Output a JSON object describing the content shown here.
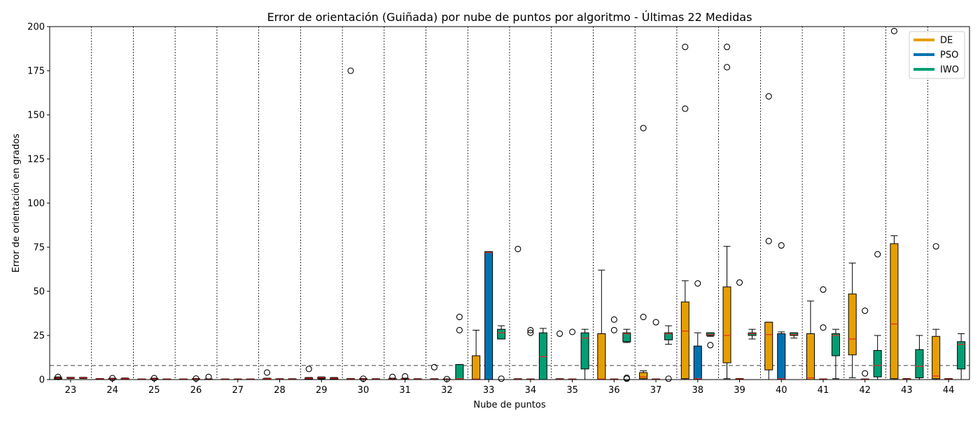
{
  "chart_data": {
    "type": "box",
    "title": "Error de orientación (Guiñada) por nube de puntos por algoritmo - Últimas 22 Medidas",
    "xlabel": "Nube de puntos",
    "ylabel": "Error de orientación en grados",
    "categories": [
      "23",
      "24",
      "25",
      "26",
      "27",
      "28",
      "29",
      "30",
      "31",
      "32",
      "33",
      "34",
      "35",
      "36",
      "37",
      "38",
      "39",
      "40",
      "41",
      "42",
      "43",
      "44"
    ],
    "ylim": [
      0,
      200
    ],
    "yticks": [
      0,
      25,
      50,
      75,
      100,
      125,
      150,
      175,
      200
    ],
    "threshold": 8,
    "legend_position": "top-right",
    "colors": {
      "DE": "#E69F00",
      "PSO": "#0072B2",
      "IWO": "#009E73",
      "median": "#e8281e",
      "threshold": "#7f7f7f"
    },
    "series": [
      {
        "name": "DE",
        "boxes": [
          {
            "q1": 0.5,
            "med": 0.9,
            "q3": 1.2,
            "lo": 0.2,
            "hi": 1.5,
            "out": [
              1.5
            ]
          },
          {
            "q1": 0.2,
            "med": 0.3,
            "q3": 0.5,
            "lo": 0.0,
            "hi": 0.6,
            "out": []
          },
          {
            "q1": 0.1,
            "med": 0.2,
            "q3": 0.3,
            "lo": 0.0,
            "hi": 0.4,
            "out": []
          },
          {
            "q1": 0.1,
            "med": 0.2,
            "q3": 0.3,
            "lo": 0.0,
            "hi": 0.4,
            "out": []
          },
          {
            "q1": 0.1,
            "med": 0.2,
            "q3": 0.3,
            "lo": 0.0,
            "hi": 0.4,
            "out": []
          },
          {
            "q1": 0.2,
            "med": 0.4,
            "q3": 0.6,
            "lo": 0.0,
            "hi": 0.8,
            "out": [
              4
            ]
          },
          {
            "q1": 0.4,
            "med": 0.7,
            "q3": 1.0,
            "lo": 0.2,
            "hi": 1.2,
            "out": [
              6
            ]
          },
          {
            "q1": 0.1,
            "med": 0.3,
            "q3": 0.5,
            "lo": 0.0,
            "hi": 0.6,
            "out": [
              175
            ]
          },
          {
            "q1": 0.2,
            "med": 0.4,
            "q3": 0.6,
            "lo": 0.0,
            "hi": 0.8,
            "out": [
              1.5
            ]
          },
          {
            "q1": 0.1,
            "med": 0.2,
            "q3": 0.4,
            "lo": 0.0,
            "hi": 0.5,
            "out": [
              7
            ]
          },
          {
            "q1": 0,
            "med": 0.3,
            "q3": 13.5,
            "lo": 0,
            "hi": 28,
            "out": []
          },
          {
            "q1": 0.1,
            "med": 0.2,
            "q3": 0.4,
            "lo": 0.0,
            "hi": 0.5,
            "out": [
              74
            ]
          },
          {
            "q1": 0.1,
            "med": 0.2,
            "q3": 0.4,
            "lo": 0.0,
            "hi": 0.5,
            "out": [
              26
            ]
          },
          {
            "q1": 0,
            "med": 0.3,
            "q3": 26,
            "lo": 0,
            "hi": 62,
            "out": []
          },
          {
            "q1": 0.5,
            "med": 1.5,
            "q3": 4,
            "lo": 0,
            "hi": 5,
            "out": [
              142.5,
              35.5
            ]
          },
          {
            "q1": 0.5,
            "med": 27.5,
            "q3": 44,
            "lo": 0,
            "hi": 56,
            "out": [
              188.5,
              153.5
            ]
          },
          {
            "q1": 9.5,
            "med": 25,
            "q3": 52.5,
            "lo": 0.5,
            "hi": 75.5,
            "out": [
              188.5,
              177
            ]
          },
          {
            "q1": 5.5,
            "med": 25.5,
            "q3": 32.5,
            "lo": 0,
            "hi": 32.5,
            "out": [
              160.5,
              78.5
            ]
          },
          {
            "q1": 0,
            "med": 1,
            "q3": 26,
            "lo": 0,
            "hi": 44.5,
            "out": []
          },
          {
            "q1": 14,
            "med": 23,
            "q3": 48.5,
            "lo": 1,
            "hi": 66,
            "out": []
          },
          {
            "q1": 0.5,
            "med": 31.5,
            "q3": 77,
            "lo": 0,
            "hi": 81.5,
            "out": [
              197.5
            ]
          },
          {
            "q1": 0.5,
            "med": 2,
            "q3": 24.5,
            "lo": 0,
            "hi": 28.5,
            "out": [
              75.5
            ]
          }
        ]
      },
      {
        "name": "PSO",
        "boxes": [
          {
            "q1": 0.8,
            "med": 1.0,
            "q3": 1.2,
            "lo": 0.6,
            "hi": 1.3,
            "out": []
          },
          {
            "q1": 0.2,
            "med": 0.4,
            "q3": 0.6,
            "lo": 0.0,
            "hi": 0.8,
            "out": [
              0.8
            ]
          },
          {
            "q1": 0.2,
            "med": 0.4,
            "q3": 0.6,
            "lo": 0.0,
            "hi": 0.8,
            "out": [
              0.8
            ]
          },
          {
            "q1": 0.1,
            "med": 0.3,
            "q3": 0.5,
            "lo": 0.0,
            "hi": 0.6,
            "out": [
              0.6
            ]
          },
          {
            "q1": 0.1,
            "med": 0.2,
            "q3": 0.3,
            "lo": 0.0,
            "hi": 0.4,
            "out": []
          },
          {
            "q1": 0.1,
            "med": 0.2,
            "q3": 0.4,
            "lo": 0.0,
            "hi": 0.5,
            "out": []
          },
          {
            "q1": 0.6,
            "med": 1.0,
            "q3": 1.3,
            "lo": 0.4,
            "hi": 1.5,
            "out": []
          },
          {
            "q1": 0.1,
            "med": 0.3,
            "q3": 0.5,
            "lo": 0.0,
            "hi": 0.6,
            "out": [
              0.5
            ]
          },
          {
            "q1": 0.2,
            "med": 0.4,
            "q3": 0.6,
            "lo": 0.0,
            "hi": 0.8,
            "out": [
              1.8
            ]
          },
          {
            "q1": 0.1,
            "med": 0.2,
            "q3": 0.3,
            "lo": 0.0,
            "hi": 0.4,
            "out": [
              0.3
            ]
          },
          {
            "q1": 0,
            "med": 72,
            "q3": 72.5,
            "lo": 0,
            "hi": 72.5,
            "out": []
          },
          {
            "q1": 0.1,
            "med": 0.2,
            "q3": 0.3,
            "lo": 0.0,
            "hi": 0.4,
            "out": [
              28,
              26.5
            ]
          },
          {
            "q1": 0.1,
            "med": 0.2,
            "q3": 0.3,
            "lo": 0.0,
            "hi": 0.4,
            "out": [
              27
            ]
          },
          {
            "q1": 0.1,
            "med": 0.2,
            "q3": 0.3,
            "lo": 0.0,
            "hi": 0.4,
            "out": [
              34,
              28
            ]
          },
          {
            "q1": 0.1,
            "med": 0.2,
            "q3": 0.3,
            "lo": 0.0,
            "hi": 0.4,
            "out": [
              32.5
            ]
          },
          {
            "q1": 0,
            "med": 0.5,
            "q3": 19,
            "lo": 0,
            "hi": 26.5,
            "out": [
              54.5
            ]
          },
          {
            "q1": 0.1,
            "med": 0.3,
            "q3": 0.5,
            "lo": 0.0,
            "hi": 0.6,
            "out": [
              55
            ]
          },
          {
            "q1": 0,
            "med": 0.5,
            "q3": 26,
            "lo": 0,
            "hi": 27,
            "out": [
              76
            ]
          },
          {
            "q1": 0.1,
            "med": 0.2,
            "q3": 0.3,
            "lo": 0.0,
            "hi": 0.4,
            "out": [
              51,
              29.5
            ]
          },
          {
            "q1": 0.1,
            "med": 0.2,
            "q3": 0.3,
            "lo": 0.0,
            "hi": 0.4,
            "out": [
              39,
              3.5
            ]
          },
          {
            "q1": 0.1,
            "med": 0.3,
            "q3": 0.5,
            "lo": 0.0,
            "hi": 0.6,
            "out": []
          },
          {
            "q1": 0.1,
            "med": 0.3,
            "q3": 0.5,
            "lo": 0.0,
            "hi": 0.6,
            "out": []
          }
        ]
      },
      {
        "name": "IWO",
        "boxes": [
          {
            "q1": 0.8,
            "med": 1.0,
            "q3": 1.2,
            "lo": 0.6,
            "hi": 1.3,
            "out": []
          },
          {
            "q1": 0.3,
            "med": 0.5,
            "q3": 0.7,
            "lo": 0.1,
            "hi": 0.9,
            "out": []
          },
          {
            "q1": 0.1,
            "med": 0.2,
            "q3": 0.3,
            "lo": 0.0,
            "hi": 0.4,
            "out": []
          },
          {
            "q1": 0.1,
            "med": 0.2,
            "q3": 0.3,
            "lo": 0.0,
            "hi": 0.4,
            "out": [
              1.5
            ]
          },
          {
            "q1": 0.1,
            "med": 0.2,
            "q3": 0.3,
            "lo": 0.0,
            "hi": 0.4,
            "out": []
          },
          {
            "q1": 0.1,
            "med": 0.2,
            "q3": 0.4,
            "lo": 0.0,
            "hi": 0.5,
            "out": []
          },
          {
            "q1": 0.4,
            "med": 0.7,
            "q3": 1.0,
            "lo": 0.2,
            "hi": 1.2,
            "out": []
          },
          {
            "q1": 0.1,
            "med": 0.2,
            "q3": 0.4,
            "lo": 0.0,
            "hi": 0.5,
            "out": []
          },
          {
            "q1": 0.1,
            "med": 0.2,
            "q3": 0.4,
            "lo": 0.0,
            "hi": 0.5,
            "out": []
          },
          {
            "q1": 0,
            "med": 0.5,
            "q3": 8.5,
            "lo": 0,
            "hi": 8.5,
            "out": [
              35.5,
              28
            ]
          },
          {
            "q1": 23,
            "med": 26.5,
            "q3": 28.5,
            "lo": 23,
            "hi": 30.5,
            "out": [
              0.5
            ]
          },
          {
            "q1": 0,
            "med": 13,
            "q3": 26.5,
            "lo": 0,
            "hi": 29,
            "out": []
          },
          {
            "q1": 6,
            "med": 23.5,
            "q3": 26.5,
            "lo": 0,
            "hi": 28.5,
            "out": []
          },
          {
            "q1": 21.5,
            "med": 26,
            "q3": 26.5,
            "lo": 21,
            "hi": 28.5,
            "out": [
              0.5,
              1
            ]
          },
          {
            "q1": 22.5,
            "med": 26,
            "q3": 26.5,
            "lo": 20,
            "hi": 30.5,
            "out": [
              0.5
            ]
          },
          {
            "q1": 25,
            "med": 25.5,
            "q3": 26.5,
            "lo": 24.5,
            "hi": 26.5,
            "out": [
              19.5
            ]
          },
          {
            "q1": 25,
            "med": 26,
            "q3": 26.5,
            "lo": 23,
            "hi": 28.5,
            "out": []
          },
          {
            "q1": 25,
            "med": 25.5,
            "q3": 26.5,
            "lo": 23.5,
            "hi": 26.5,
            "out": []
          },
          {
            "q1": 13.5,
            "med": 25,
            "q3": 26,
            "lo": 0.5,
            "hi": 28.5,
            "out": []
          },
          {
            "q1": 1.5,
            "med": 8,
            "q3": 16.5,
            "lo": 0,
            "hi": 25,
            "out": [
              71
            ]
          },
          {
            "q1": 1,
            "med": 7.5,
            "q3": 17,
            "lo": 0,
            "hi": 25,
            "out": []
          },
          {
            "q1": 6,
            "med": 20,
            "q3": 21.5,
            "lo": 0,
            "hi": 26,
            "out": []
          }
        ]
      }
    ]
  }
}
